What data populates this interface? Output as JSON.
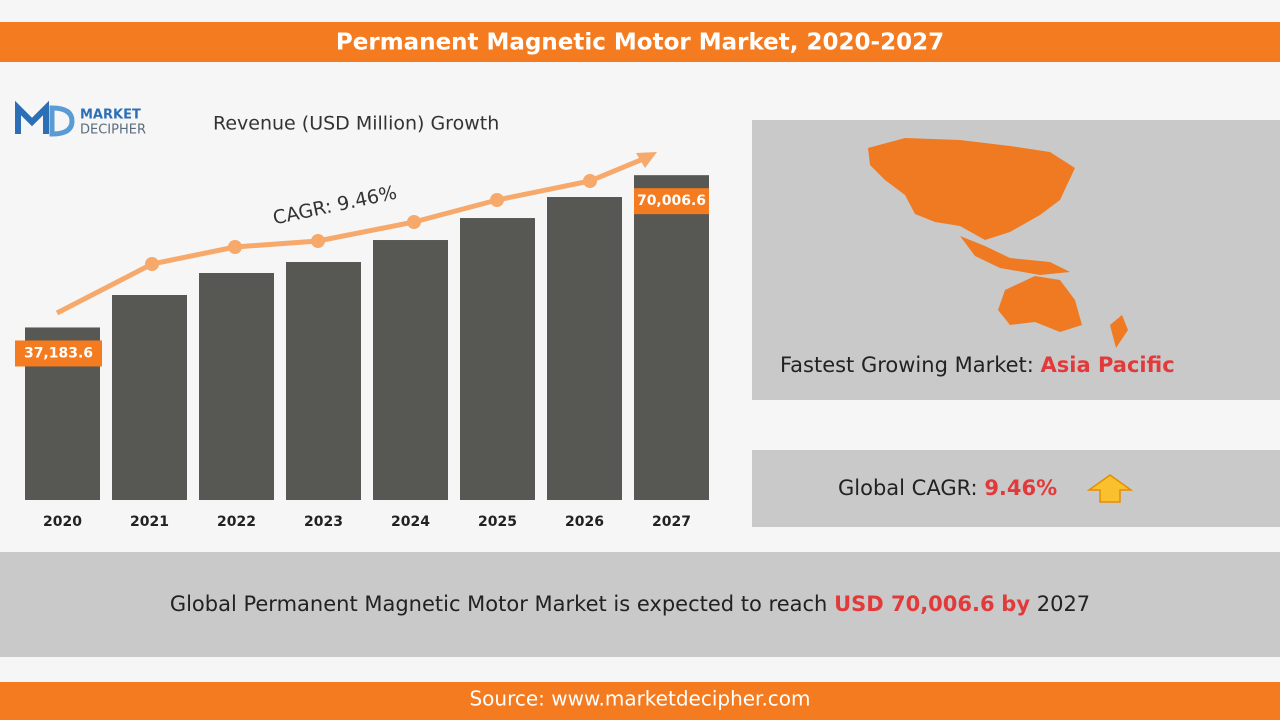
{
  "header": {
    "title": "Permanent Magnetic Motor Market, 2020-2027"
  },
  "logo": {
    "line1": "MARKET",
    "line2": "DECIPHER"
  },
  "chart_data": {
    "type": "bar",
    "title": "Revenue (USD Million) Growth",
    "annotation": "CAGR: 9.46%",
    "categories": [
      "2020",
      "2021",
      "2022",
      "2023",
      "2024",
      "2025",
      "2026",
      "2027"
    ],
    "values": [
      37183.6,
      44180,
      48920,
      51290,
      56030,
      60770,
      65300,
      70006.6
    ],
    "value_labels": [
      "37,183.6",
      null,
      null,
      null,
      null,
      null,
      null,
      "70,006.6"
    ],
    "color": "#575753",
    "label_color": "#f47b20",
    "ylim": [
      0,
      75000
    ]
  },
  "region_panel": {
    "label": "Fastest Growing Market:",
    "value": "Asia Pacific"
  },
  "cagr_panel": {
    "label": "Global CAGR:",
    "value": "9.46%"
  },
  "summary": {
    "text": "Global Permanent Magnetic Motor Market is expected to reach",
    "amount": "USD 70,006.6",
    "by": "by",
    "year": "2027"
  },
  "footer": {
    "source": "Source: www.marketdecipher.com"
  }
}
